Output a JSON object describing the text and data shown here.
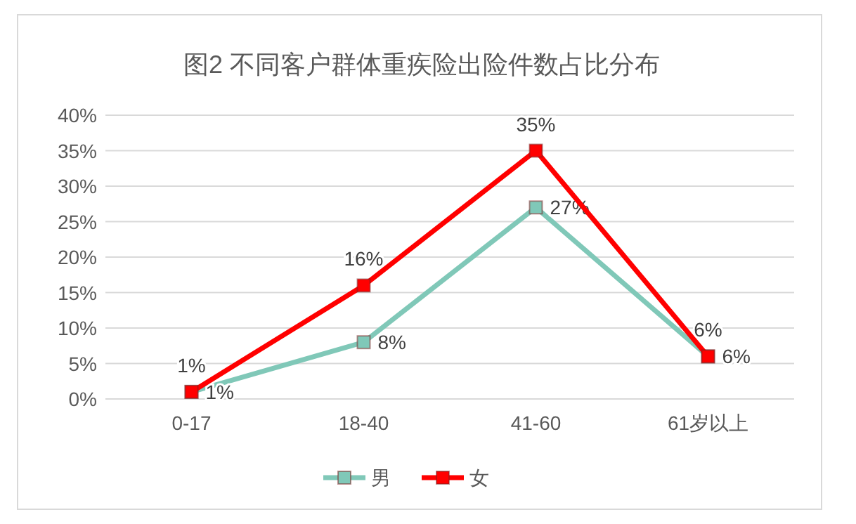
{
  "chart_data": {
    "type": "line",
    "title": "图2 不同客户群体重疾险出险件数占比分布",
    "categories": [
      "0-17",
      "18-40",
      "41-60",
      "61岁以上"
    ],
    "series": [
      {
        "name": "男",
        "color": "#80c8b8",
        "values": [
          1,
          8,
          27,
          6
        ],
        "value_labels": [
          "1%",
          "8%",
          "27%",
          "6%"
        ]
      },
      {
        "name": "女",
        "color": "#ff0000",
        "values": [
          1,
          16,
          35,
          6
        ],
        "value_labels": [
          "1%",
          "16%",
          "35%",
          "6%"
        ]
      }
    ],
    "ylim": [
      0,
      40
    ],
    "yticks": [
      {
        "value": 0,
        "label": "0%"
      },
      {
        "value": 5,
        "label": "5%"
      },
      {
        "value": 10,
        "label": "10%"
      },
      {
        "value": 15,
        "label": "15%"
      },
      {
        "value": 20,
        "label": "20%"
      },
      {
        "value": 25,
        "label": "25%"
      },
      {
        "value": 30,
        "label": "30%"
      },
      {
        "value": 35,
        "label": "35%"
      },
      {
        "value": 40,
        "label": "40%"
      }
    ],
    "grid": "y",
    "legend": "bottom",
    "marker": "square",
    "line_style": "solid"
  }
}
